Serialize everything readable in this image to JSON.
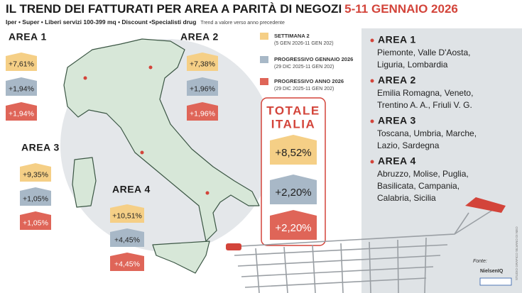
{
  "header": {
    "title": "IL TREND DEI FATTURATI PER AREA A PARITÀ DI NEGOZI",
    "title_date": "5-11 GENNAIO 2026",
    "subtitle": "Iper • Super • Liberi servizi 100-399 mq • Discount •Specialisti drug",
    "note": "Trend a valore verso anno precedente"
  },
  "legend": [
    {
      "label": "SETTIMANA 2",
      "sublabel": "(5 GEN 2026-11 GEN 202)"
    },
    {
      "label": "PROGRESSIVO GENNAIO 2026",
      "sublabel": "(29 DIC 2025-11 GEN 202)"
    },
    {
      "label": "PROGRESSIVO ANNO 2026",
      "sublabel": "(29 DIC 2025-11 GEN 202)"
    }
  ],
  "areas": [
    {
      "name": "AREA 1",
      "values": [
        "+7,61%",
        "+1,94%",
        "+1,94%"
      ],
      "regions": [
        "Piemonte, Valle D'Aosta,",
        "Liguria, Lombardia"
      ]
    },
    {
      "name": "AREA 2",
      "values": [
        "+7,38%",
        "+1,96%",
        "+1,96%"
      ],
      "regions": [
        "Emilia Romagna, Veneto,",
        "Trentino A. A., Friuli V. G."
      ]
    },
    {
      "name": "AREA 3",
      "values": [
        "+9,35%",
        "+1,05%",
        "+1,05%"
      ],
      "regions": [
        "Toscana, Umbria, Marche,",
        "Lazio, Sardegna"
      ]
    },
    {
      "name": "AREA 4",
      "values": [
        "+10,51%",
        "+4,45%",
        "+4,45%"
      ],
      "regions": [
        "Abruzzo, Molise, Puglia,",
        "Basilicata, Campania,",
        "Calabria, Sicilia"
      ]
    }
  ],
  "total": {
    "title": [
      "TOTALE",
      "ITALIA"
    ],
    "values": [
      "+8,52%",
      "+2,20%",
      "+2,20%"
    ]
  },
  "source": {
    "label": "Fonte:",
    "brand": "NielsenIQ",
    "credit": "STUDIO GRAFICO SILVANO DI NEO"
  }
}
